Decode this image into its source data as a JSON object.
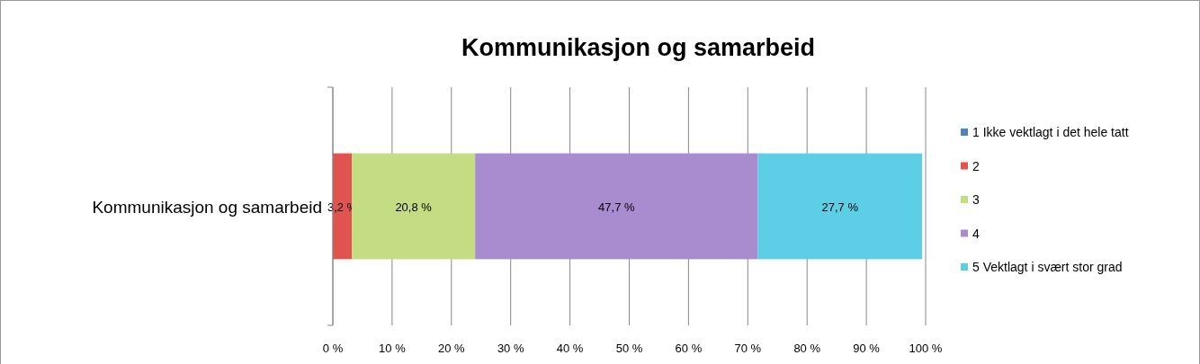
{
  "chart_data": {
    "type": "bar",
    "orientation": "horizontal",
    "stacked": true,
    "title": "Kommunikasjon og samarbeid",
    "categories": [
      "Kommunikasjon og samarbeid"
    ],
    "series": [
      {
        "name": "1 Ikke vektlagt i det hele tatt",
        "color": "#4f81bd",
        "values": [
          0
        ],
        "value_labels": [
          null
        ]
      },
      {
        "name": "2",
        "color": "#e0534f",
        "values": [
          3.2
        ],
        "value_labels": [
          "3,2 %"
        ]
      },
      {
        "name": "3",
        "color": "#c4dc82",
        "values": [
          20.8
        ],
        "value_labels": [
          "20,8 %"
        ]
      },
      {
        "name": "4",
        "color": "#a98bd0",
        "values": [
          47.7
        ],
        "value_labels": [
          "47,7 %"
        ]
      },
      {
        "name": "5 Vektlagt i svært stor grad",
        "color": "#5ccfe6",
        "values": [
          27.7
        ],
        "value_labels": [
          "27,7 %"
        ]
      }
    ],
    "xlim": [
      0,
      100
    ],
    "xticks": [
      {
        "value": 0,
        "label": "0 %"
      },
      {
        "value": 10,
        "label": "10 %"
      },
      {
        "value": 20,
        "label": "20 %"
      },
      {
        "value": 30,
        "label": "30 %"
      },
      {
        "value": 40,
        "label": "40 %"
      },
      {
        "value": 50,
        "label": "50 %"
      },
      {
        "value": 60,
        "label": "60 %"
      },
      {
        "value": 70,
        "label": "70 %"
      },
      {
        "value": 80,
        "label": "80 %"
      },
      {
        "value": 90,
        "label": "90 %"
      },
      {
        "value": 100,
        "label": "100 %"
      }
    ],
    "grid": "x",
    "legend": "right"
  }
}
